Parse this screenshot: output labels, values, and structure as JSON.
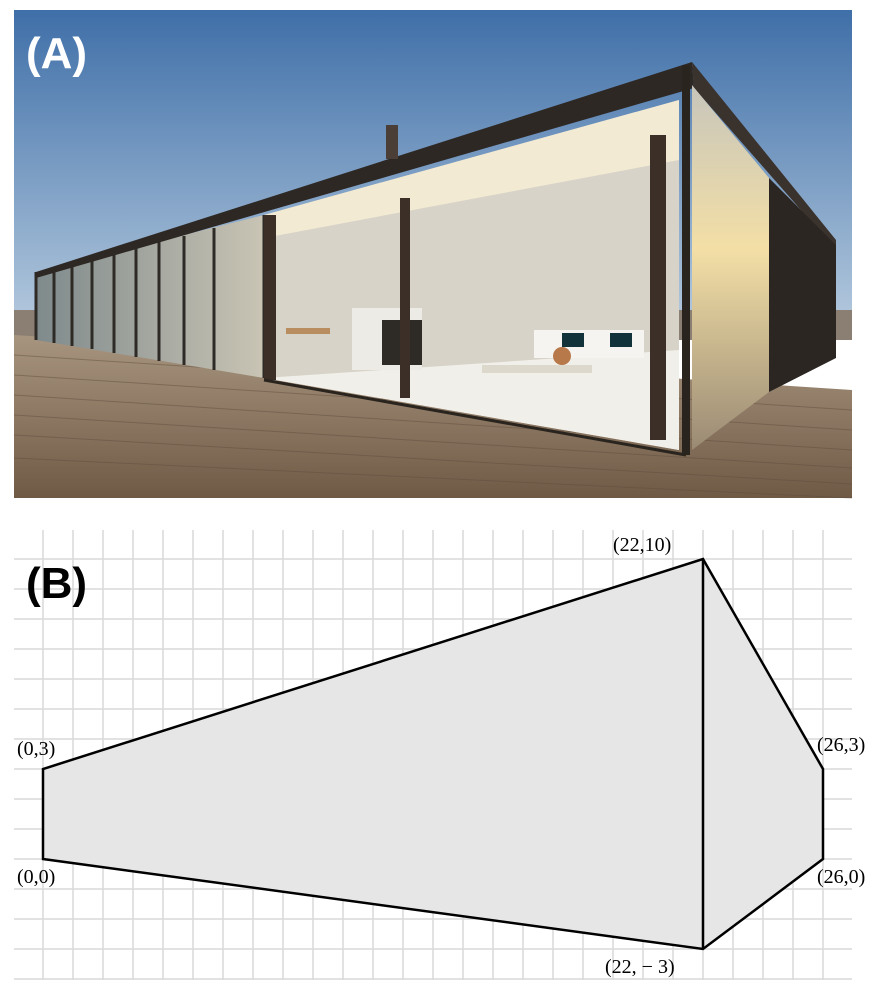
{
  "panel_a": {
    "label": "(A)"
  },
  "panel_b": {
    "label": "(B)",
    "vertices": [
      {
        "id": "v1",
        "x": 0,
        "y": 0,
        "label": "(0,0)"
      },
      {
        "id": "v2",
        "x": 0,
        "y": 3,
        "label": "(0,3)"
      },
      {
        "id": "v3",
        "x": 22,
        "y": 10,
        "label": "(22,10)"
      },
      {
        "id": "v4",
        "x": 22,
        "y": -3,
        "label": "(22, − 3)"
      },
      {
        "id": "v5",
        "x": 26,
        "y": 3,
        "label": "(26,3)"
      },
      {
        "id": "v6",
        "x": 26,
        "y": 0,
        "label": "(26,0)"
      }
    ],
    "fill_color": "#e6e6e6",
    "grid_color": "#d9d9d9"
  }
}
